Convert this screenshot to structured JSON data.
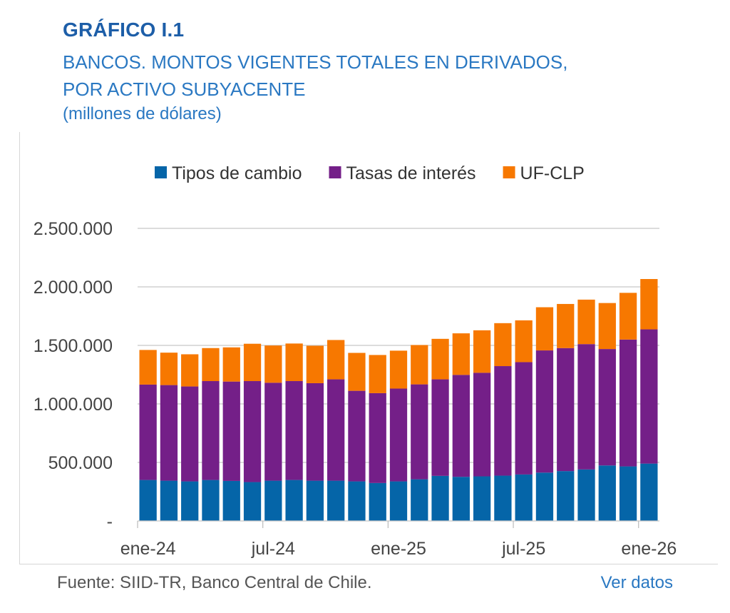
{
  "header": {
    "title": "GRÁFICO I.1",
    "subtitle_line1": "BANCOS. MONTOS VIGENTES TOTALES EN DERIVADOS,",
    "subtitle_line2": "POR ACTIVO SUBYACENTE",
    "units": "(millones de dólares)"
  },
  "footer": {
    "source": "Fuente: SIID-TR, Banco Central de Chile.",
    "link": "Ver datos"
  },
  "chart_data": {
    "type": "bar",
    "stacked": true,
    "categories": [
      "2024-01",
      "2024-02",
      "2024-03",
      "2024-04",
      "2024-05",
      "2024-06",
      "2024-07",
      "2024-08",
      "2024-09",
      "2024-10",
      "2024-11",
      "2024-12",
      "2025-01",
      "2025-02",
      "2025-03",
      "2025-04",
      "2025-05",
      "2025-06",
      "2025-07",
      "2025-08",
      "2025-09",
      "2025-10",
      "2025-11",
      "2025-12",
      "2026-01"
    ],
    "x_tick_labels": [
      {
        "category": "2024-01",
        "label": "ene-24"
      },
      {
        "category": "2024-07",
        "label": "jul-24"
      },
      {
        "category": "2025-01",
        "label": "ene-25"
      },
      {
        "category": "2025-07",
        "label": "jul-25"
      },
      {
        "category": "2026-01",
        "label": "ene-26"
      }
    ],
    "y_ticks": [
      0,
      500000,
      1000000,
      1500000,
      2000000,
      2500000
    ],
    "y_tick_labels": [
      "-",
      "500.000",
      "1.000.000",
      "1.500.000",
      "2.000.000",
      "2.500.000"
    ],
    "ylim": [
      0,
      2500000
    ],
    "grid": true,
    "legend_position": "top",
    "series": [
      {
        "name": "Tipos de cambio",
        "color": "#0565a8",
        "values": [
          350000,
          344000,
          338000,
          350000,
          342000,
          332000,
          344000,
          350000,
          344000,
          344000,
          338000,
          324000,
          338000,
          356000,
          385000,
          377000,
          381000,
          387000,
          397000,
          413000,
          426000,
          440000,
          474000,
          466000,
          490000
        ]
      },
      {
        "name": "Tasas de interés",
        "color": "#741f88",
        "values": [
          815000,
          817000,
          811000,
          845000,
          849000,
          863000,
          837000,
          845000,
          833000,
          866000,
          774000,
          768000,
          793000,
          811000,
          825000,
          871000,
          885000,
          936000,
          960000,
          1044000,
          1051000,
          1071000,
          995000,
          1084000,
          1147000
        ]
      },
      {
        "name": "UF-CLP",
        "color": "#f77800",
        "values": [
          296000,
          277000,
          275000,
          282000,
          292000,
          319000,
          318000,
          321000,
          320000,
          336000,
          324000,
          326000,
          324000,
          336000,
          346000,
          355000,
          363000,
          367000,
          357000,
          369000,
          377000,
          380000,
          393000,
          399000,
          430000
        ]
      }
    ]
  }
}
